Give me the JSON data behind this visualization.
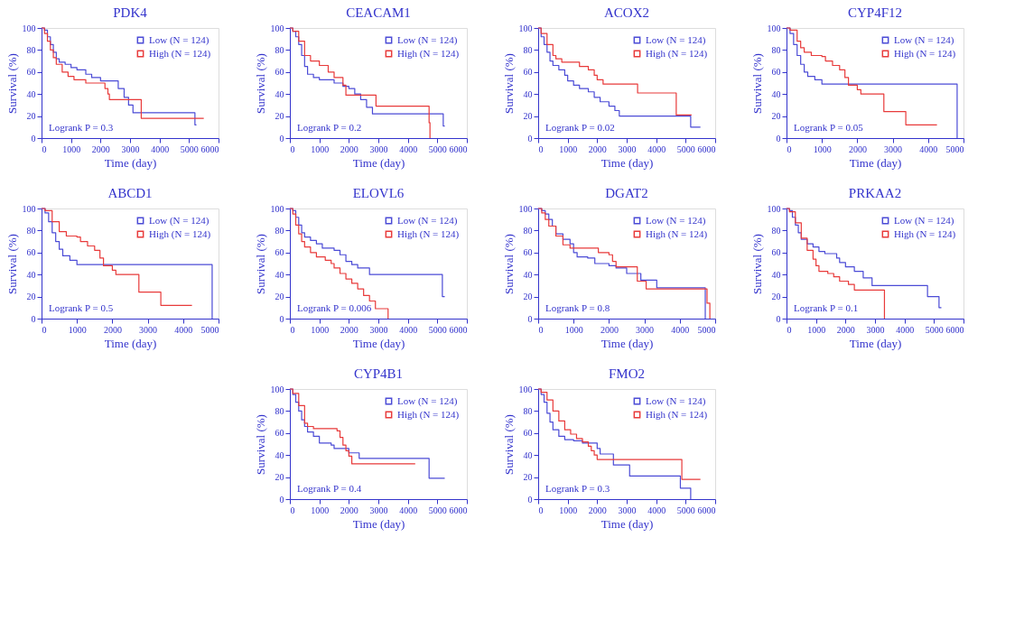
{
  "chart_data": [
    {
      "type": "step",
      "title": "PDK4",
      "xlabel": "Time (day)",
      "ylabel": "Survival (%)",
      "xlim": [
        0,
        6000
      ],
      "xticks": [
        0,
        1000,
        2000,
        3000,
        4000,
        5000,
        6000
      ],
      "ylim": [
        0,
        100
      ],
      "yticks": [
        0,
        20,
        40,
        60,
        80,
        100
      ],
      "legend": "top right",
      "grid": false,
      "annotations": [
        "Logrank P = 0.3"
      ],
      "series": [
        {
          "name": "Low (N = 124)",
          "color": "#4b4bd6",
          "x": [
            0,
            100,
            200,
            300,
            400,
            500,
            600,
            800,
            1000,
            1200,
            1500,
            1700,
            2000,
            2500,
            2600,
            2800,
            2950,
            3100,
            5150,
            5200,
            5250
          ],
          "values": [
            100,
            98,
            92,
            85,
            78,
            72,
            69,
            67,
            64,
            62,
            58,
            55,
            52,
            52,
            45,
            37,
            30,
            23,
            23,
            12,
            12
          ]
        },
        {
          "name": "High (N = 124)",
          "color": "#e83a3a",
          "x": [
            0,
            100,
            200,
            300,
            400,
            500,
            700,
            900,
            1100,
            1500,
            2000,
            2150,
            2250,
            2300,
            3350,
            3380,
            5500
          ],
          "values": [
            100,
            95,
            88,
            80,
            73,
            67,
            60,
            56,
            53,
            50,
            50,
            45,
            40,
            35,
            35,
            18,
            18
          ]
        }
      ]
    },
    {
      "type": "step",
      "title": "CEACAM1",
      "xlabel": "Time (day)",
      "ylabel": "Survival (%)",
      "xlim": [
        0,
        6000
      ],
      "xticks": [
        0,
        1000,
        2000,
        3000,
        4000,
        5000,
        6000
      ],
      "ylim": [
        0,
        100
      ],
      "yticks": [
        0,
        20,
        40,
        60,
        80,
        100
      ],
      "legend": "top right",
      "grid": false,
      "annotations": [
        "Logrank P = 0.2"
      ],
      "series": [
        {
          "name": "Low (N = 124)",
          "color": "#4b4bd6",
          "x": [
            0,
            100,
            200,
            300,
            400,
            500,
            600,
            800,
            1000,
            1500,
            1800,
            2000,
            2200,
            2400,
            2600,
            2800,
            5150,
            5200,
            5250
          ],
          "values": [
            100,
            97,
            92,
            85,
            75,
            65,
            58,
            55,
            53,
            50,
            47,
            45,
            40,
            35,
            28,
            22,
            22,
            11,
            11
          ]
        },
        {
          "name": "High (N = 124)",
          "color": "#e83a3a",
          "x": [
            0,
            100,
            300,
            500,
            700,
            1000,
            1300,
            1500,
            1800,
            1900,
            2900,
            2920,
            4700,
            4720,
            4750
          ],
          "values": [
            100,
            97,
            88,
            75,
            70,
            66,
            60,
            55,
            48,
            39,
            39,
            29,
            29,
            14,
            0
          ]
        }
      ]
    },
    {
      "type": "step",
      "title": "ACOX2",
      "xlabel": "Time (day)",
      "ylabel": "Survival (%)",
      "xlim": [
        0,
        6000
      ],
      "xticks": [
        0,
        1000,
        2000,
        3000,
        4000,
        5000,
        6000
      ],
      "ylim": [
        0,
        100
      ],
      "yticks": [
        0,
        20,
        40,
        60,
        80,
        100
      ],
      "legend": "top right",
      "grid": false,
      "annotations": [
        "Logrank P = 0.02"
      ],
      "series": [
        {
          "name": "Low (N = 124)",
          "color": "#4b4bd6",
          "x": [
            0,
            100,
            200,
            300,
            400,
            500,
            700,
            900,
            1000,
            1200,
            1400,
            1700,
            1900,
            2100,
            2400,
            2600,
            2750,
            5150,
            5170,
            5500
          ],
          "values": [
            100,
            92,
            85,
            78,
            70,
            66,
            62,
            57,
            52,
            48,
            45,
            42,
            37,
            33,
            29,
            25,
            20,
            20,
            10,
            10
          ]
        },
        {
          "name": "High (N = 124)",
          "color": "#e83a3a",
          "x": [
            0,
            100,
            300,
            500,
            600,
            800,
            1300,
            1400,
            1700,
            1900,
            2000,
            2200,
            3350,
            3370,
            4650,
            4680,
            5200
          ],
          "values": [
            100,
            95,
            85,
            75,
            72,
            69,
            69,
            65,
            62,
            57,
            53,
            49,
            49,
            41,
            41,
            21,
            21
          ]
        }
      ]
    },
    {
      "type": "step",
      "title": "CYP4F12",
      "xlabel": "Time (day)",
      "ylabel": "Survival (%)",
      "xlim": [
        0,
        5000
      ],
      "xticks": [
        0,
        1000,
        2000,
        3000,
        4000,
        5000
      ],
      "ylim": [
        0,
        100
      ],
      "yticks": [
        0,
        20,
        40,
        60,
        80,
        100
      ],
      "legend": "top right",
      "grid": false,
      "annotations": [
        "Logrank P = 0.05"
      ],
      "series": [
        {
          "name": "Low (N = 124)",
          "color": "#4b4bd6",
          "x": [
            0,
            100,
            200,
            300,
            400,
            500,
            600,
            800,
            1000,
            4800,
            4820
          ],
          "values": [
            100,
            95,
            85,
            75,
            67,
            60,
            56,
            53,
            49,
            49,
            0
          ]
        },
        {
          "name": "High (N = 124)",
          "color": "#e83a3a",
          "x": [
            0,
            100,
            300,
            400,
            500,
            700,
            1000,
            1100,
            1300,
            1500,
            1650,
            1750,
            2000,
            2100,
            2700,
            2750,
            3350,
            3370,
            4250
          ],
          "values": [
            100,
            98,
            88,
            82,
            78,
            75,
            74,
            70,
            66,
            62,
            55,
            48,
            44,
            40,
            40,
            24,
            24,
            12,
            12
          ]
        }
      ]
    },
    {
      "type": "step",
      "title": "ABCD1",
      "xlabel": "Time (day)",
      "ylabel": "Survival (%)",
      "xlim": [
        0,
        5000
      ],
      "xticks": [
        0,
        1000,
        2000,
        3000,
        4000,
        5000
      ],
      "ylim": [
        0,
        100
      ],
      "yticks": [
        0,
        20,
        40,
        60,
        80,
        100
      ],
      "legend": "top right",
      "grid": false,
      "annotations": [
        "Logrank P = 0.5"
      ],
      "series": [
        {
          "name": "Low (N = 124)",
          "color": "#4b4bd6",
          "x": [
            0,
            100,
            200,
            300,
            400,
            500,
            600,
            800,
            1000,
            4800,
            4820
          ],
          "values": [
            100,
            96,
            88,
            78,
            70,
            63,
            57,
            53,
            49,
            49,
            0
          ]
        },
        {
          "name": "High (N = 124)",
          "color": "#e83a3a",
          "x": [
            0,
            100,
            300,
            500,
            700,
            1000,
            1100,
            1300,
            1500,
            1650,
            1750,
            2000,
            2100,
            2700,
            2750,
            3350,
            3370,
            4250
          ],
          "values": [
            100,
            98,
            88,
            79,
            75,
            74,
            70,
            66,
            62,
            55,
            48,
            44,
            40,
            40,
            24,
            24,
            12,
            12
          ]
        }
      ]
    },
    {
      "type": "step",
      "title": "ELOVL6",
      "xlabel": "Time (day)",
      "ylabel": "Survival (%)",
      "xlim": [
        0,
        6000
      ],
      "xticks": [
        0,
        1000,
        2000,
        3000,
        4000,
        5000,
        6000
      ],
      "ylim": [
        0,
        100
      ],
      "yticks": [
        0,
        20,
        40,
        60,
        80,
        100
      ],
      "legend": "top right",
      "grid": false,
      "annotations": [
        "Logrank P = 0.006"
      ],
      "series": [
        {
          "name": "Low (N = 124)",
          "color": "#4b4bd6",
          "x": [
            0,
            100,
            200,
            300,
            400,
            500,
            700,
            900,
            1100,
            1500,
            1700,
            1900,
            2100,
            2300,
            2700,
            5150,
            5170,
            5250
          ],
          "values": [
            100,
            98,
            92,
            85,
            78,
            74,
            71,
            68,
            64,
            62,
            58,
            52,
            49,
            46,
            40,
            40,
            20,
            20
          ]
        },
        {
          "name": "High (N = 124)",
          "color": "#e83a3a",
          "x": [
            0,
            100,
            200,
            300,
            400,
            500,
            700,
            900,
            1200,
            1400,
            1500,
            1700,
            1900,
            2100,
            2300,
            2500,
            2700,
            2900,
            3300,
            3330
          ],
          "values": [
            100,
            95,
            85,
            77,
            70,
            65,
            60,
            56,
            53,
            50,
            46,
            41,
            36,
            32,
            27,
            21,
            16,
            9,
            9,
            0
          ]
        }
      ]
    },
    {
      "type": "step",
      "title": "DGAT2",
      "xlabel": "Time (day)",
      "ylabel": "Survival (%)",
      "xlim": [
        0,
        5000
      ],
      "xticks": [
        0,
        1000,
        2000,
        3000,
        4000,
        5000
      ],
      "ylim": [
        0,
        100
      ],
      "yticks": [
        0,
        20,
        40,
        60,
        80,
        100
      ],
      "legend": "top right",
      "grid": false,
      "annotations": [
        "Logrank P = 0.8"
      ],
      "series": [
        {
          "name": "Low (N = 124)",
          "color": "#4b4bd6",
          "x": [
            0,
            100,
            200,
            300,
            400,
            500,
            700,
            900,
            1000,
            1100,
            1400,
            1600,
            2000,
            2200,
            2500,
            2800,
            2900,
            3300,
            3350,
            4700,
            4720
          ],
          "values": [
            100,
            98,
            95,
            90,
            84,
            77,
            72,
            68,
            60,
            56,
            55,
            50,
            48,
            46,
            41,
            41,
            35,
            35,
            28,
            28,
            0
          ]
        },
        {
          "name": "High (N = 124)",
          "color": "#e83a3a",
          "x": [
            0,
            100,
            200,
            300,
            500,
            700,
            900,
            1600,
            1700,
            2000,
            2100,
            2200,
            2700,
            2800,
            3000,
            3050,
            4750,
            4770,
            4820,
            4850
          ],
          "values": [
            100,
            96,
            90,
            84,
            75,
            67,
            64,
            64,
            60,
            58,
            52,
            47,
            47,
            34,
            34,
            27,
            27,
            14,
            14,
            0
          ]
        }
      ]
    },
    {
      "type": "step",
      "title": "PRKAA2",
      "xlabel": "Time (day)",
      "ylabel": "Survival (%)",
      "xlim": [
        0,
        6000
      ],
      "xticks": [
        0,
        1000,
        2000,
        3000,
        4000,
        5000,
        6000
      ],
      "ylim": [
        0,
        100
      ],
      "yticks": [
        0,
        20,
        40,
        60,
        80,
        100
      ],
      "legend": "top right",
      "grid": false,
      "annotations": [
        "Logrank P = 0.1"
      ],
      "series": [
        {
          "name": "Low (N = 124)",
          "color": "#4b4bd6",
          "x": [
            0,
            100,
            200,
            300,
            400,
            500,
            700,
            900,
            1100,
            1300,
            1600,
            1700,
            1800,
            2000,
            2300,
            2600,
            2900,
            4750,
            4780,
            5150,
            5170,
            5250
          ],
          "values": [
            100,
            98,
            92,
            85,
            78,
            72,
            68,
            65,
            61,
            59,
            59,
            55,
            51,
            47,
            43,
            37,
            30,
            30,
            20,
            20,
            10,
            10
          ]
        },
        {
          "name": "High (N = 124)",
          "color": "#e83a3a",
          "x": [
            0,
            100,
            300,
            500,
            700,
            900,
            1000,
            1100,
            1400,
            1600,
            1800,
            2100,
            2300,
            3300,
            3320
          ],
          "values": [
            100,
            97,
            87,
            73,
            62,
            54,
            48,
            43,
            41,
            38,
            34,
            31,
            26,
            26,
            0
          ]
        }
      ]
    },
    {
      "type": "step",
      "title": "CYP4B1",
      "xlabel": "Time (day)",
      "ylabel": "Survival (%)",
      "xlim": [
        0,
        6000
      ],
      "xticks": [
        0,
        1000,
        2000,
        3000,
        4000,
        5000,
        6000
      ],
      "ylim": [
        0,
        100
      ],
      "yticks": [
        0,
        20,
        40,
        60,
        80,
        100
      ],
      "legend": "top right",
      "grid": false,
      "annotations": [
        "Logrank P = 0.4"
      ],
      "series": [
        {
          "name": "Low (N = 124)",
          "color": "#4b4bd6",
          "x": [
            0,
            100,
            200,
            300,
            400,
            500,
            600,
            800,
            1000,
            1400,
            1500,
            1900,
            2000,
            2300,
            2350,
            4700,
            4720,
            5250
          ],
          "values": [
            100,
            95,
            88,
            80,
            72,
            66,
            61,
            57,
            51,
            49,
            46,
            46,
            42,
            42,
            37,
            37,
            19,
            19
          ]
        },
        {
          "name": "High (N = 124)",
          "color": "#e83a3a",
          "x": [
            0,
            100,
            300,
            500,
            600,
            800,
            1400,
            1600,
            1700,
            1800,
            1900,
            2000,
            2100,
            4250
          ],
          "values": [
            100,
            96,
            85,
            69,
            66,
            64,
            64,
            62,
            56,
            49,
            44,
            39,
            32,
            32
          ]
        }
      ]
    },
    {
      "type": "step",
      "title": "FMO2",
      "xlabel": "Time (day)",
      "ylabel": "Survival (%)",
      "xlim": [
        0,
        6000
      ],
      "xticks": [
        0,
        1000,
        2000,
        3000,
        4000,
        5000,
        6000
      ],
      "ylim": [
        0,
        100
      ],
      "yticks": [
        0,
        20,
        40,
        60,
        80,
        100
      ],
      "legend": "top right",
      "grid": false,
      "annotations": [
        "Logrank P = 0.3"
      ],
      "series": [
        {
          "name": "Low (N = 124)",
          "color": "#4b4bd6",
          "x": [
            0,
            100,
            200,
            300,
            400,
            500,
            700,
            900,
            1200,
            1500,
            1900,
            2000,
            2100,
            2500,
            2550,
            3050,
            3100,
            4800,
            4820,
            5150,
            5170
          ],
          "values": [
            100,
            95,
            88,
            78,
            70,
            63,
            57,
            54,
            53,
            51,
            51,
            46,
            41,
            41,
            31,
            31,
            21,
            21,
            10,
            10,
            0
          ]
        },
        {
          "name": "High (N = 124)",
          "color": "#e83a3a",
          "x": [
            0,
            100,
            300,
            500,
            700,
            900,
            1100,
            1300,
            1500,
            1700,
            1800,
            1900,
            2000,
            4850,
            4870,
            5500
          ],
          "values": [
            100,
            97,
            90,
            80,
            71,
            63,
            59,
            55,
            52,
            48,
            44,
            40,
            36,
            36,
            18,
            18
          ]
        }
      ]
    }
  ]
}
